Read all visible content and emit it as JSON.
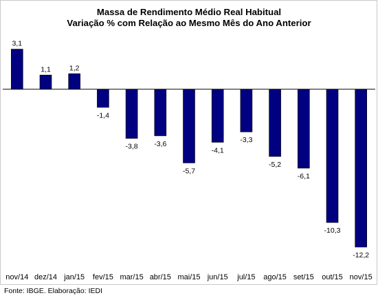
{
  "chart_data": {
    "type": "bar",
    "title": "Massa de Rendimento Médio Real Habitual",
    "subtitle": "Variação % com Relação ao Mesmo Mês do Ano Anterior",
    "categories": [
      "nov/14",
      "dez/14",
      "jan/15",
      "fev/15",
      "mar/15",
      "abr/15",
      "mai/15",
      "jun/15",
      "jul/15",
      "ago/15",
      "set/15",
      "out/15",
      "nov/15"
    ],
    "values": [
      3.1,
      1.1,
      1.2,
      -1.4,
      -3.8,
      -3.6,
      -5.7,
      -4.1,
      -3.3,
      -5.2,
      -6.1,
      -10.3,
      -12.2
    ],
    "data_labels": [
      "3,1",
      "1,1",
      "1,2",
      "-1,4",
      "-3,8",
      "-3,6",
      "-5,7",
      "-4,1",
      "-3,3",
      "-5,2",
      "-6,1",
      "-10,3",
      "-12,2"
    ],
    "xlabel": "",
    "ylabel": "",
    "ylim": [
      -13.5,
      4.5
    ],
    "grid": false,
    "legend": "none",
    "bar_color": "#000080",
    "bar_edge_color": "#000000"
  },
  "source_note": "Fonte: IBGE. Elaboração: IEDI"
}
